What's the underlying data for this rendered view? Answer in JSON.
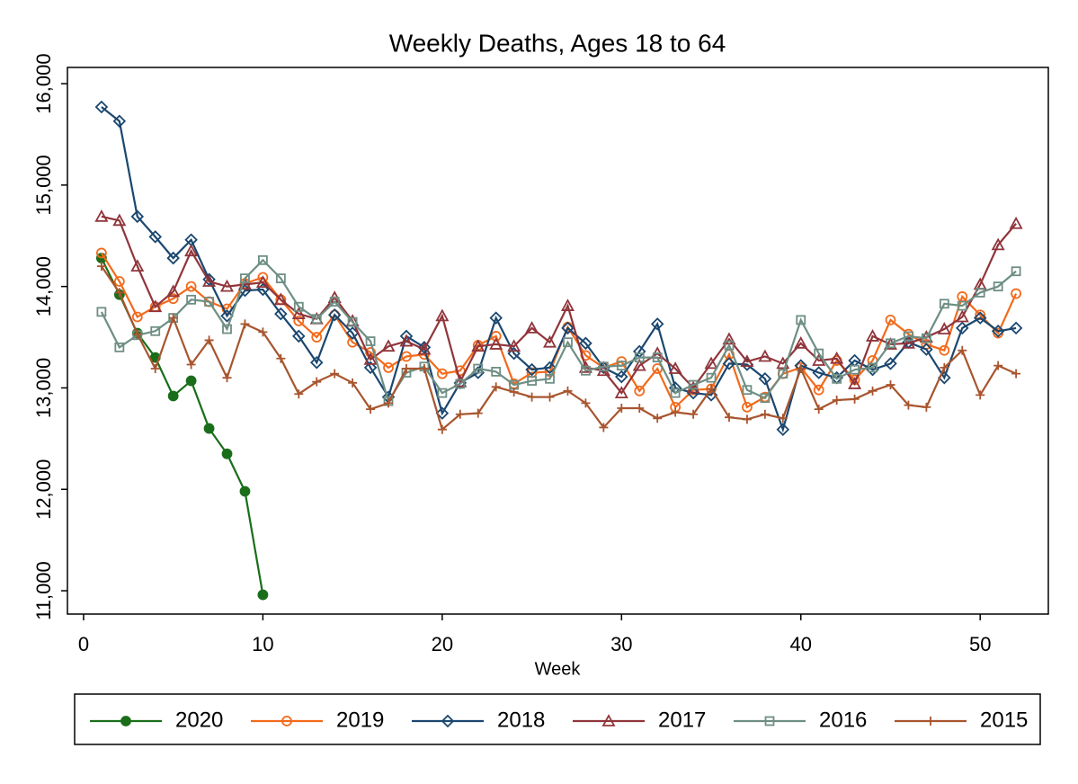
{
  "chart_data": {
    "type": "line",
    "title": "Weekly Deaths, Ages 18 to 64",
    "x_label": "Week",
    "x": [
      1,
      2,
      3,
      4,
      5,
      6,
      7,
      8,
      9,
      10,
      11,
      12,
      13,
      14,
      15,
      16,
      17,
      18,
      19,
      20,
      21,
      22,
      23,
      24,
      25,
      26,
      27,
      28,
      29,
      30,
      31,
      32,
      33,
      34,
      35,
      36,
      37,
      38,
      39,
      40,
      41,
      42,
      43,
      44,
      45,
      46,
      47,
      48,
      49,
      50,
      51,
      52
    ],
    "xlim": [
      -0.9,
      53.8
    ],
    "xticks": [
      0,
      10,
      20,
      30,
      40,
      50
    ],
    "ylim": [
      10770,
      16160
    ],
    "yticks": [
      {
        "value": 11000,
        "label": "11,000"
      },
      {
        "value": 12000,
        "label": "12,000"
      },
      {
        "value": 13000,
        "label": "13,000"
      },
      {
        "value": 14000,
        "label": "14,000"
      },
      {
        "value": 15000,
        "label": "15,000"
      },
      {
        "value": 16000,
        "label": "16,000"
      }
    ],
    "legend": "bottom",
    "series": [
      {
        "name": "2020",
        "color": "#1a6e1a",
        "marker": "filled-circle",
        "values": [
          14280,
          13920,
          13540,
          13300,
          12920,
          13070,
          12600,
          12350,
          11980,
          10960,
          null,
          null,
          null,
          null,
          null,
          null,
          null,
          null,
          null,
          null,
          null,
          null,
          null,
          null,
          null,
          null,
          null,
          null,
          null,
          null,
          null,
          null,
          null,
          null,
          null,
          null,
          null,
          null,
          null,
          null,
          null,
          null,
          null,
          null,
          null,
          null,
          null,
          null,
          null,
          null,
          null,
          null
        ]
      },
      {
        "name": "2019",
        "color": "#f26a1b",
        "marker": "circle",
        "values": [
          14330,
          14050,
          13700,
          13800,
          13880,
          14000,
          13850,
          13780,
          14030,
          14090,
          13870,
          13660,
          13500,
          13720,
          13450,
          13350,
          13200,
          13310,
          13330,
          13140,
          13170,
          13420,
          13510,
          13040,
          13150,
          13160,
          13600,
          13320,
          13200,
          13260,
          12970,
          13190,
          12810,
          12980,
          12990,
          13330,
          12810,
          12910,
          13140,
          13200,
          12980,
          13270,
          13080,
          13270,
          13670,
          13530,
          13430,
          13370,
          13900,
          13720,
          13540,
          13930
        ]
      },
      {
        "name": "2018",
        "color": "#1a476f",
        "marker": "diamond",
        "values": [
          15770,
          15630,
          14690,
          14490,
          14280,
          14460,
          14070,
          13710,
          13960,
          13970,
          13730,
          13510,
          13250,
          13720,
          13540,
          13200,
          12910,
          13510,
          13400,
          12750,
          13050,
          13150,
          13690,
          13340,
          13180,
          13200,
          13590,
          13440,
          13200,
          13110,
          13360,
          13630,
          13000,
          12950,
          12930,
          13240,
          13230,
          13090,
          12590,
          13220,
          13150,
          13100,
          13270,
          13180,
          13240,
          13450,
          13380,
          13100,
          13590,
          13690,
          13560,
          13590
        ]
      },
      {
        "name": "2017",
        "color": "#90353b",
        "marker": "triangle",
        "values": [
          14690,
          14650,
          14200,
          13800,
          13950,
          14350,
          14050,
          14000,
          14020,
          14040,
          13870,
          13730,
          13680,
          13890,
          13660,
          13280,
          13410,
          13460,
          13380,
          13710,
          13060,
          13410,
          13430,
          13410,
          13590,
          13450,
          13810,
          13200,
          13170,
          12950,
          13220,
          13340,
          13190,
          13000,
          13240,
          13480,
          13260,
          13310,
          13240,
          13440,
          13270,
          13290,
          13040,
          13510,
          13430,
          13440,
          13500,
          13580,
          13700,
          14020,
          14410,
          14620
        ]
      },
      {
        "name": "2016",
        "color": "#6e8e84",
        "marker": "square",
        "values": [
          13750,
          13400,
          13520,
          13560,
          13690,
          13870,
          13850,
          13580,
          14080,
          14260,
          14080,
          13800,
          13680,
          13850,
          13650,
          13460,
          12870,
          13150,
          13210,
          12950,
          13040,
          13190,
          13160,
          13030,
          13070,
          13090,
          13450,
          13170,
          13210,
          13220,
          13300,
          13300,
          12950,
          13030,
          13100,
          13420,
          12980,
          12900,
          13140,
          13670,
          13340,
          13090,
          13180,
          13200,
          13440,
          13510,
          13490,
          13830,
          13810,
          13940,
          14000,
          14150
        ]
      },
      {
        "name": "2015",
        "color": "#a8552e",
        "marker": "plus",
        "values": [
          14200,
          13940,
          13530,
          13190,
          13690,
          13230,
          13470,
          13100,
          13630,
          13550,
          13290,
          12940,
          13060,
          13140,
          13050,
          12790,
          12850,
          13190,
          13190,
          12590,
          12740,
          12750,
          13010,
          12960,
          12910,
          12910,
          12970,
          12850,
          12610,
          12800,
          12800,
          12700,
          12760,
          12740,
          12990,
          12710,
          12690,
          12740,
          12700,
          13190,
          12790,
          12880,
          12890,
          12970,
          13030,
          12830,
          12810,
          13200,
          13370,
          12930,
          13220,
          13140
        ]
      }
    ]
  }
}
